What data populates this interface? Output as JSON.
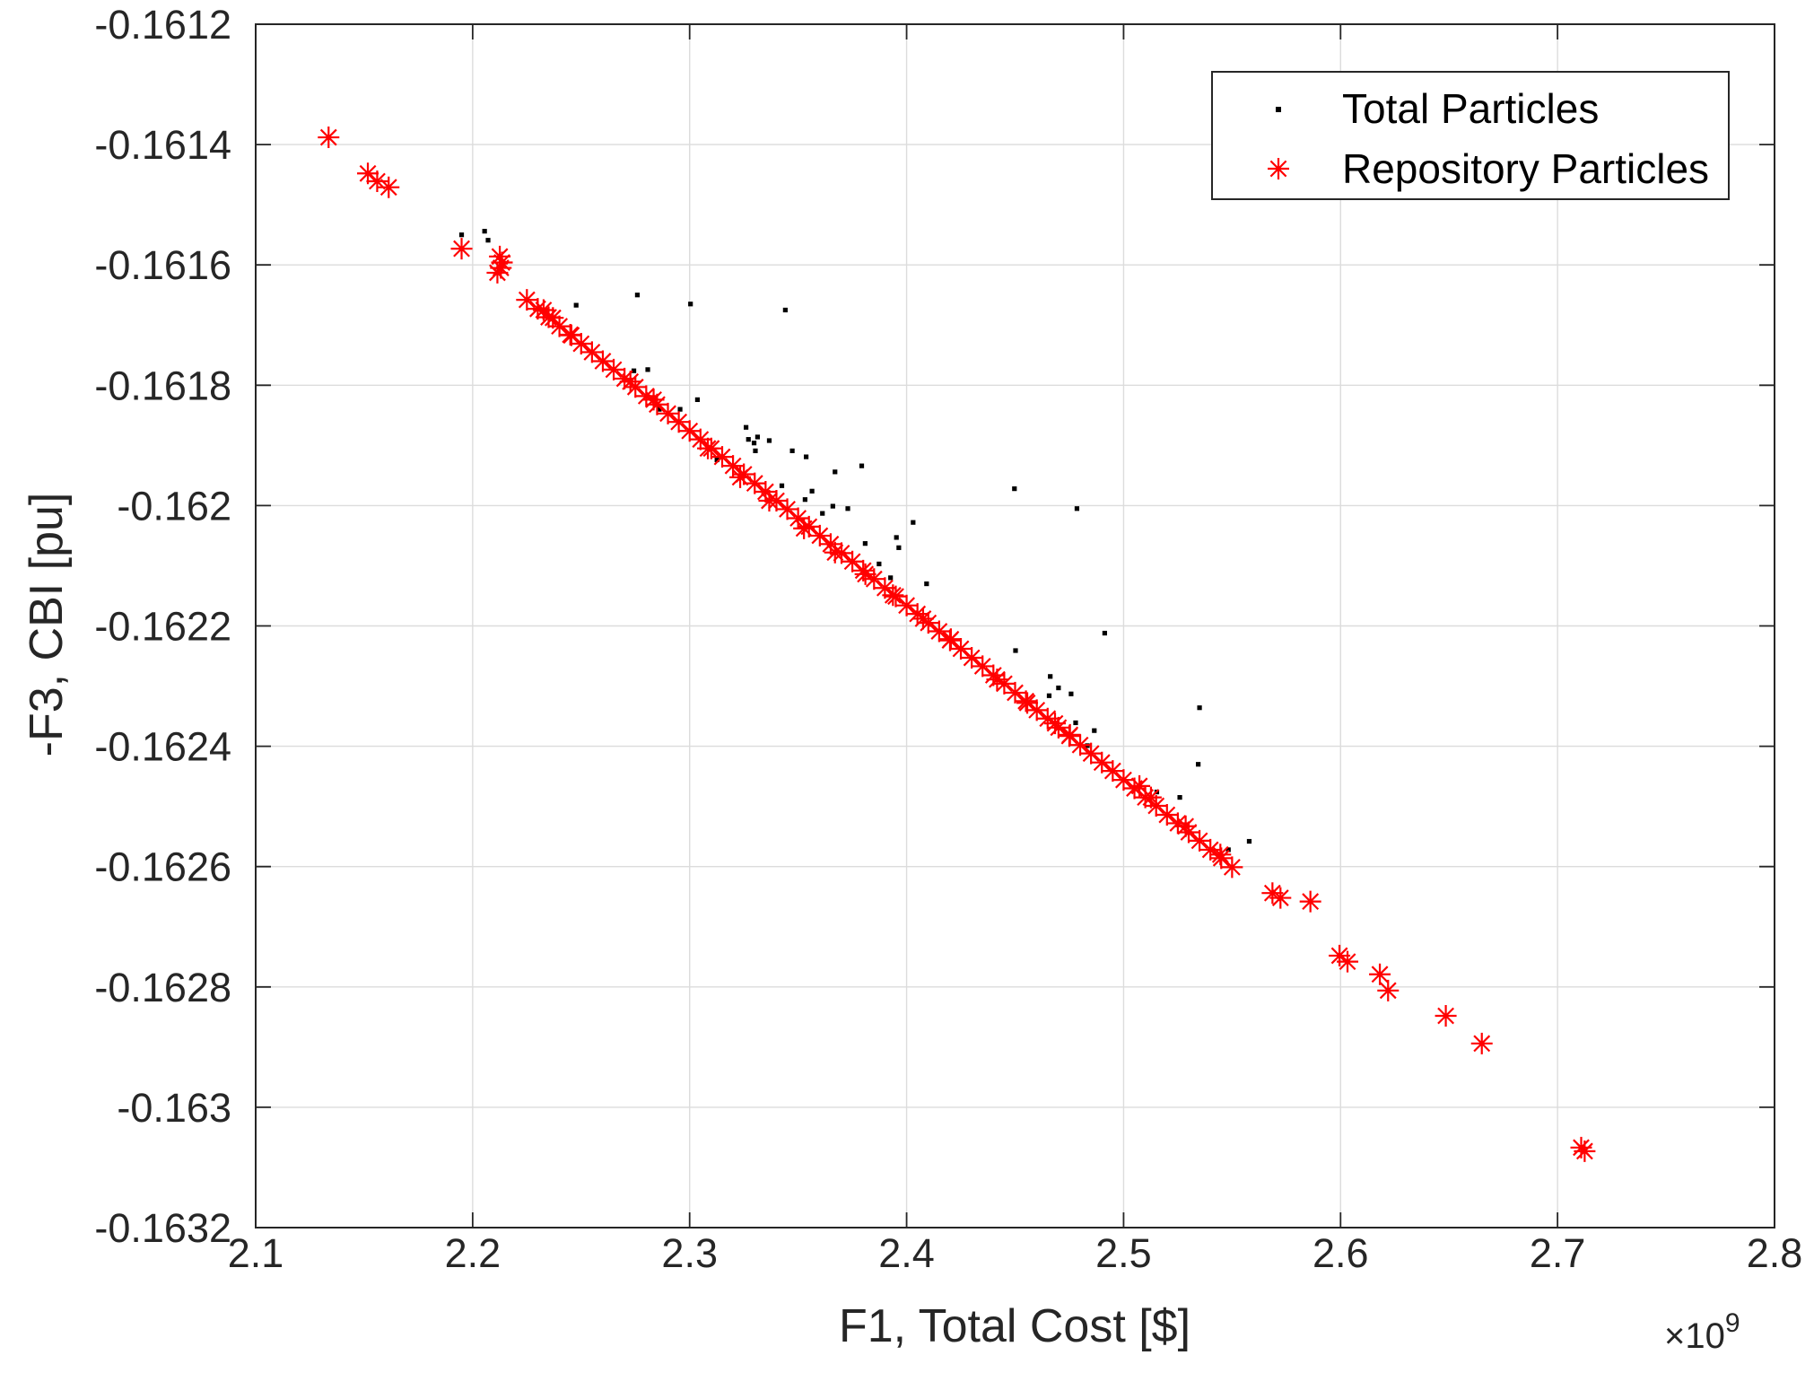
{
  "chart_data": {
    "type": "scatter",
    "title": "",
    "xlabel": "F1, Total Cost [$]",
    "ylabel": "-F3, CBI [pu]",
    "x_exponent": {
      "base": "×10",
      "power": "9"
    },
    "xlim": [
      2.1,
      2.8
    ],
    "ylim": [
      -0.1632,
      -0.1612
    ],
    "xticks": [
      2.1,
      2.2,
      2.3,
      2.4,
      2.5,
      2.6,
      2.7,
      2.8
    ],
    "xtick_labels": [
      "2.1",
      "2.2",
      "2.3",
      "2.4",
      "2.5",
      "2.6",
      "2.7",
      "2.8"
    ],
    "yticks": [
      -0.1612,
      -0.1614,
      -0.1616,
      -0.1618,
      -0.162,
      -0.1622,
      -0.1624,
      -0.1626,
      -0.1628,
      -0.163,
      -0.1632
    ],
    "ytick_labels": [
      "-0.1612",
      "-0.1614",
      "-0.1616",
      "-0.1618",
      "-0.162",
      "-0.1622",
      "-0.1624",
      "-0.1626",
      "-0.1628",
      "-0.163",
      "-0.1632"
    ],
    "grid": true,
    "legend": {
      "position": "top-right"
    },
    "series": [
      {
        "name": "Total Particles",
        "marker": "dot",
        "color": "#000000",
        "points": [
          [
            2.1949,
            -0.16155
          ],
          [
            2.2055,
            -0.161544
          ],
          [
            2.2071,
            -0.161559
          ],
          [
            2.2477,
            -0.161667
          ],
          [
            2.2759,
            -0.16165
          ],
          [
            2.3004,
            -0.161665
          ],
          [
            2.3441,
            -0.161675
          ],
          [
            2.2743,
            -0.161776
          ],
          [
            2.2807,
            -0.161774
          ],
          [
            2.3036,
            -0.161824
          ],
          [
            2.286,
            -0.16184
          ],
          [
            2.2956,
            -0.16184
          ],
          [
            2.326,
            -0.16187
          ],
          [
            2.3271,
            -0.16189
          ],
          [
            2.3297,
            -0.161896
          ],
          [
            2.3313,
            -0.161886
          ],
          [
            2.3367,
            -0.161892
          ],
          [
            2.3473,
            -0.161909
          ],
          [
            2.3537,
            -0.161919
          ],
          [
            2.3303,
            -0.161909
          ],
          [
            2.3793,
            -0.161934
          ],
          [
            2.367,
            -0.161944
          ],
          [
            2.3425,
            -0.161967
          ],
          [
            2.3564,
            -0.161976
          ],
          [
            2.366,
            -0.162001
          ],
          [
            2.3729,
            -0.162005
          ],
          [
            2.403,
            -0.162028
          ],
          [
            2.3953,
            -0.162053
          ],
          [
            2.3809,
            -0.162063
          ],
          [
            2.3964,
            -0.16207
          ],
          [
            2.3873,
            -0.162097
          ],
          [
            2.3926,
            -0.16212
          ],
          [
            2.4092,
            -0.16213
          ],
          [
            2.4497,
            -0.161972
          ],
          [
            2.4785,
            -0.162005
          ],
          [
            2.4913,
            -0.162212
          ],
          [
            2.4502,
            -0.162241
          ],
          [
            2.4662,
            -0.162284
          ],
          [
            2.47,
            -0.162303
          ],
          [
            2.4758,
            -0.162313
          ],
          [
            2.4657,
            -0.162316
          ],
          [
            2.4865,
            -0.162374
          ],
          [
            2.4779,
            -0.162361
          ],
          [
            2.535,
            -0.162336
          ],
          [
            2.5344,
            -0.16243
          ],
          [
            2.5153,
            -0.162476
          ],
          [
            2.5259,
            -0.162485
          ],
          [
            2.5579,
            -0.162558
          ],
          [
            2.5483,
            -0.162572
          ],
          [
            2.4833,
            -0.162399
          ],
          [
            2.3612,
            -0.162013
          ],
          [
            2.3532,
            -0.16199
          ],
          [
            2.3126,
            -0.161924
          ]
        ]
      },
      {
        "name": "Repository Particles",
        "marker": "asterisk",
        "color": "#ff0000",
        "points": [
          [
            2.1336,
            -0.161388
          ],
          [
            2.1517,
            -0.161448
          ],
          [
            2.156,
            -0.161461
          ],
          [
            2.1613,
            -0.161471
          ],
          [
            2.1949,
            -0.161573
          ],
          [
            2.2114,
            -0.161613
          ],
          [
            2.2125,
            -0.161586
          ],
          [
            2.213,
            -0.161605
          ],
          [
            2.2135,
            -0.161596
          ],
          [
            2.225,
            -0.161658
          ],
          [
            2.23,
            -0.161673
          ],
          [
            2.235,
            -0.161687
          ],
          [
            2.24,
            -0.161702
          ],
          [
            2.245,
            -0.161716
          ],
          [
            2.25,
            -0.161731
          ],
          [
            2.255,
            -0.161745
          ],
          [
            2.26,
            -0.16176
          ],
          [
            2.265,
            -0.161774
          ],
          [
            2.27,
            -0.161789
          ],
          [
            2.275,
            -0.161803
          ],
          [
            2.28,
            -0.161818
          ],
          [
            2.285,
            -0.161832
          ],
          [
            2.29,
            -0.161847
          ],
          [
            2.295,
            -0.161861
          ],
          [
            2.3,
            -0.161876
          ],
          [
            2.305,
            -0.16189
          ],
          [
            2.31,
            -0.161905
          ],
          [
            2.315,
            -0.161919
          ],
          [
            2.32,
            -0.161934
          ],
          [
            2.325,
            -0.161948
          ],
          [
            2.33,
            -0.161963
          ],
          [
            2.335,
            -0.161977
          ],
          [
            2.34,
            -0.161992
          ],
          [
            2.345,
            -0.162006
          ],
          [
            2.35,
            -0.162021
          ],
          [
            2.355,
            -0.162035
          ],
          [
            2.36,
            -0.16205
          ],
          [
            2.365,
            -0.162064
          ],
          [
            2.37,
            -0.162079
          ],
          [
            2.375,
            -0.162093
          ],
          [
            2.38,
            -0.162108
          ],
          [
            2.385,
            -0.162122
          ],
          [
            2.39,
            -0.162137
          ],
          [
            2.395,
            -0.162151
          ],
          [
            2.4,
            -0.162166
          ],
          [
            2.405,
            -0.16218
          ],
          [
            2.41,
            -0.162195
          ],
          [
            2.415,
            -0.162209
          ],
          [
            2.42,
            -0.162224
          ],
          [
            2.425,
            -0.162238
          ],
          [
            2.43,
            -0.162253
          ],
          [
            2.435,
            -0.162267
          ],
          [
            2.44,
            -0.162282
          ],
          [
            2.445,
            -0.162296
          ],
          [
            2.45,
            -0.162311
          ],
          [
            2.455,
            -0.162325
          ],
          [
            2.46,
            -0.16234
          ],
          [
            2.465,
            -0.162354
          ],
          [
            2.47,
            -0.162369
          ],
          [
            2.475,
            -0.162383
          ],
          [
            2.48,
            -0.162398
          ],
          [
            2.485,
            -0.162412
          ],
          [
            2.49,
            -0.162427
          ],
          [
            2.495,
            -0.162441
          ],
          [
            2.5,
            -0.162456
          ],
          [
            2.505,
            -0.16247
          ],
          [
            2.51,
            -0.162485
          ],
          [
            2.515,
            -0.162499
          ],
          [
            2.52,
            -0.162514
          ],
          [
            2.525,
            -0.162528
          ],
          [
            2.53,
            -0.162543
          ],
          [
            2.535,
            -0.162557
          ],
          [
            2.54,
            -0.162572
          ],
          [
            2.545,
            -0.162586
          ],
          [
            2.55,
            -0.162601
          ],
          [
            2.2327,
            -0.161675
          ],
          [
            2.237,
            -0.161688
          ],
          [
            2.2455,
            -0.161717
          ],
          [
            2.2727,
            -0.161794
          ],
          [
            2.2834,
            -0.161824
          ],
          [
            2.3084,
            -0.161905
          ],
          [
            2.3233,
            -0.161953
          ],
          [
            2.3367,
            -0.161992
          ],
          [
            2.3527,
            -0.162038
          ],
          [
            2.367,
            -0.162078
          ],
          [
            2.381,
            -0.162114
          ],
          [
            2.3937,
            -0.162149
          ],
          [
            2.4076,
            -0.162188
          ],
          [
            2.4204,
            -0.162222
          ],
          [
            2.4417,
            -0.162289
          ],
          [
            2.4556,
            -0.162328
          ],
          [
            2.4684,
            -0.162362
          ],
          [
            2.4753,
            -0.162381
          ],
          [
            2.5073,
            -0.162466
          ],
          [
            2.5126,
            -0.162485
          ],
          [
            2.5286,
            -0.162533
          ],
          [
            2.5446,
            -0.16258
          ],
          [
            2.5686,
            -0.162644
          ],
          [
            2.5723,
            -0.162652
          ],
          [
            2.5861,
            -0.162658
          ],
          [
            2.5995,
            -0.162748
          ],
          [
            2.6032,
            -0.162758
          ],
          [
            2.6181,
            -0.162779
          ],
          [
            2.6219,
            -0.162806
          ],
          [
            2.6485,
            -0.162848
          ],
          [
            2.6651,
            -0.162894
          ],
          [
            2.7109,
            -0.163067
          ],
          [
            2.7125,
            -0.163073
          ]
        ]
      }
    ]
  }
}
